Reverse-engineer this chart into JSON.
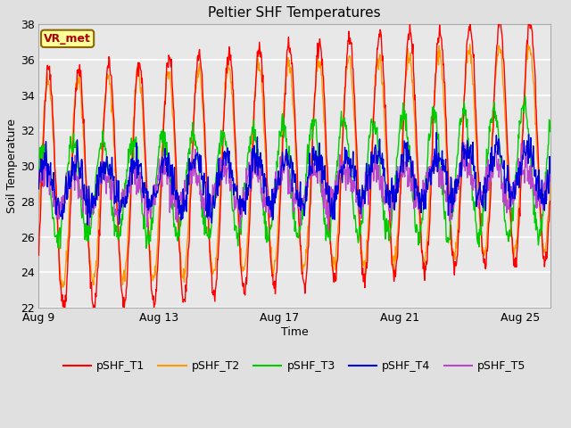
{
  "title": "Peltier SHF Temperatures",
  "xlabel": "Time",
  "ylabel": "Soil Temperature",
  "ylim": [
    22,
    38
  ],
  "yticks": [
    22,
    24,
    26,
    28,
    30,
    32,
    34,
    36,
    38
  ],
  "xtick_labels": [
    "Aug 9",
    "Aug 13",
    "Aug 17",
    "Aug 21",
    "Aug 25"
  ],
  "xtick_positions": [
    0,
    4,
    8,
    12,
    16
  ],
  "xlim": [
    0,
    17
  ],
  "colors": {
    "T1": "#ff0000",
    "T2": "#ff9900",
    "T3": "#00cc00",
    "T4": "#0000dd",
    "T5": "#bb44cc"
  },
  "legend_labels": [
    "pSHF_T1",
    "pSHF_T2",
    "pSHF_T3",
    "pSHF_T4",
    "pSHF_T5"
  ],
  "bg_color": "#e0e0e0",
  "plot_bg_color": "#e8e8e8",
  "grid_color": "#ffffff",
  "annotation_text": "VR_met",
  "annotation_color": "#aa0000",
  "annotation_bg": "#ffff99",
  "annotation_border": "#886600",
  "title_fontsize": 11,
  "label_fontsize": 9,
  "tick_fontsize": 9,
  "legend_fontsize": 9
}
